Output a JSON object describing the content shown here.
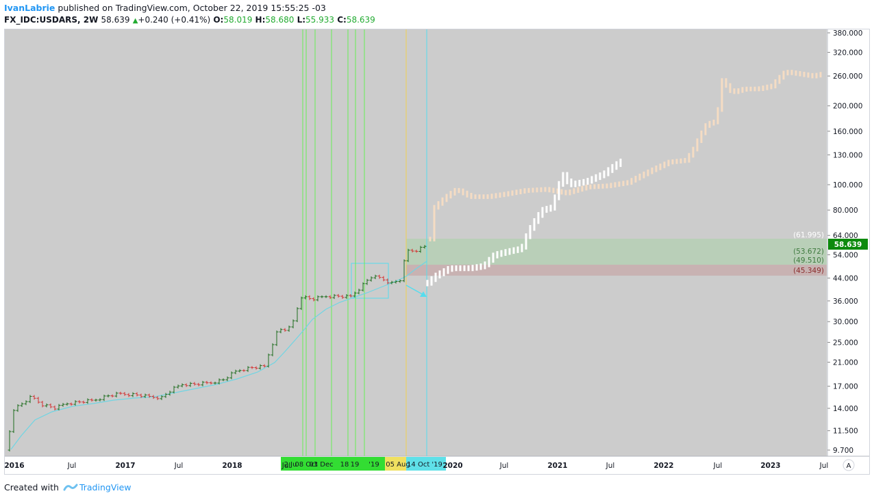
{
  "header": {
    "author": "IvanLabrie",
    "published": " published on TradingView.com, October 22, 2019 15:55:25 -03",
    "symbol": "FX_IDC:USDARS, 2W",
    "last": "58.639",
    "change": "+0.240 (+0.41%)",
    "o_label": "O:",
    "o": "58.019",
    "h_label": "H:",
    "h": "58.680",
    "l_label": "L:",
    "l": "55.933",
    "c_label": "C:",
    "c": "58.639"
  },
  "footer": {
    "created_with": "Created with",
    "brand": "TradingView"
  },
  "price_axis": {
    "ticks": [
      "380.000",
      "320.000",
      "260.000",
      "200.000",
      "160.000",
      "130.000",
      "100.000",
      "80.000",
      "64.000",
      "54.000",
      "44.000",
      "36.000",
      "30.000",
      "25.000",
      "21.000",
      "17.000",
      "14.000",
      "11.500",
      "9.700"
    ],
    "last_price_label": "58.639",
    "scale": "log"
  },
  "time_axis": {
    "ticks": [
      "2016",
      "Jul",
      "2017",
      "Jul",
      "2018",
      "Jul",
      "2020",
      "Jul",
      "2021",
      "Jul",
      "2022",
      "Jul",
      "2023",
      "Jul"
    ],
    "auto_button": "A"
  },
  "zone_labels": [
    "(61.995)",
    "(53.672)",
    "(49.510)",
    "(45.349)"
  ],
  "date_markers": [
    "2 Ju",
    "08 Oct",
    "03 Dec",
    "18",
    "19",
    "'19",
    "05 Aug",
    "14 Oct '19"
  ],
  "colors": {
    "chart_bg": "#cccccc",
    "bull": "#1b6b1b",
    "bear": "#d32f2f",
    "ma_line": "#6fd5e3",
    "projection_orange": "#f5dcc3",
    "projection_white": "#ffffff",
    "green_zone": "#b9cfb8",
    "red_zone": "#c8b2b2",
    "vline_green": "#66ee55",
    "vline_yellow": "#f0d050",
    "vline_cyan": "#55ddee",
    "last_price_bg": "#0d8a0d"
  },
  "chart_data": {
    "type": "ohlc-bars",
    "symbol": "FX_IDC:USDARS",
    "interval": "2W",
    "y_scale": "log",
    "ylim": [
      9.5,
      390
    ],
    "series": [
      {
        "name": "price",
        "x": [
          "2016",
          "Jul 2016",
          "2017",
          "Jul 2017",
          "2018",
          "Jul 2018",
          "Oct 2018",
          "Dec 2018",
          "2019",
          "Apr 2019",
          "Aug 2019",
          "Oct 2019"
        ],
        "values": [
          9.7,
          15.0,
          15.9,
          17.3,
          19.0,
          28.0,
          37.5,
          37.0,
          38.5,
          44.0,
          45.0,
          58.639
        ]
      }
    ],
    "levels": [
      61.995,
      53.672,
      49.51,
      45.349
    ]
  }
}
